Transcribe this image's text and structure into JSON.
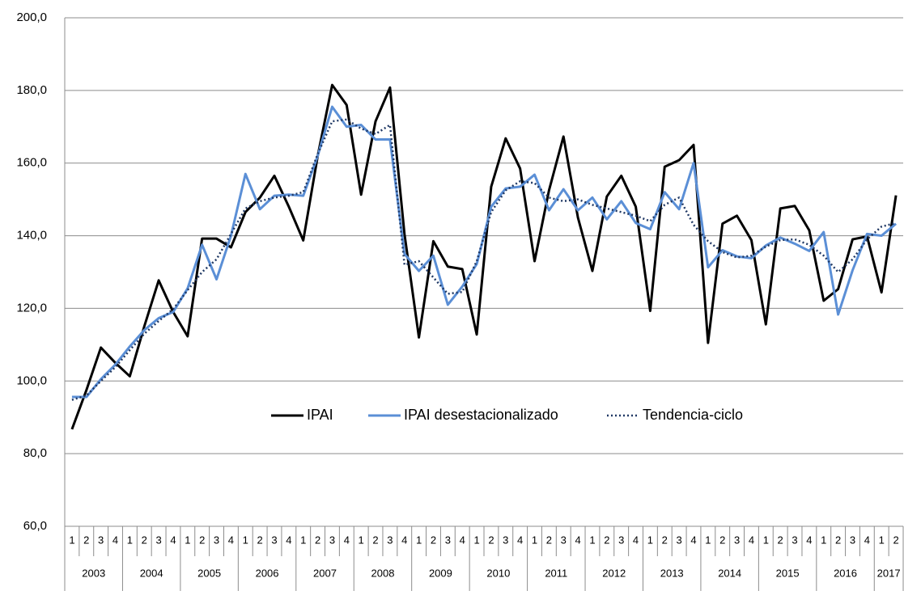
{
  "chart_data": {
    "type": "line",
    "categories": [
      "1",
      "2",
      "3",
      "4",
      "1",
      "2",
      "3",
      "4",
      "1",
      "2",
      "3",
      "4",
      "1",
      "2",
      "3",
      "4",
      "1",
      "2",
      "3",
      "4",
      "1",
      "2",
      "3",
      "4",
      "1",
      "2",
      "3",
      "4",
      "1",
      "2",
      "3",
      "4",
      "1",
      "2",
      "3",
      "4",
      "1",
      "2",
      "3",
      "4",
      "1",
      "2",
      "3",
      "4",
      "1",
      "2",
      "3",
      "4",
      "1",
      "2",
      "3",
      "4",
      "1",
      "2",
      "3",
      "4",
      "1",
      "2"
    ],
    "years": [
      "2003",
      "2004",
      "2005",
      "2006",
      "2007",
      "2008",
      "2009",
      "2010",
      "2011",
      "2012",
      "2013",
      "2014",
      "2015",
      "2016",
      "2017"
    ],
    "ylim": [
      60,
      200
    ],
    "yticks": [
      {
        "value": 60,
        "label": "60,0"
      },
      {
        "value": 80,
        "label": "80,0"
      },
      {
        "value": 100,
        "label": "100,0"
      },
      {
        "value": 120,
        "label": "120,0"
      },
      {
        "value": 140,
        "label": "140,0"
      },
      {
        "value": 160,
        "label": "160,0"
      },
      {
        "value": 180,
        "label": "180,0"
      },
      {
        "value": 200,
        "label": "200,0"
      }
    ],
    "grid": true,
    "series": [
      {
        "name": "IPAI",
        "color": "#000000",
        "dash": false,
        "values": [
          86.7,
          97.5,
          109.2,
          105,
          101.3,
          115,
          127.7,
          119,
          112.3,
          139.2,
          139.2,
          136.8,
          146.5,
          150.5,
          156.5,
          148,
          138.7,
          162,
          181.5,
          176,
          151.3,
          171.5,
          180.8,
          140.5,
          112,
          138.5,
          131.5,
          130.8,
          112.8,
          153.5,
          166.8,
          158.5,
          133,
          152.5,
          167.3,
          145,
          130.3,
          150.8,
          156.5,
          148,
          119.3,
          159,
          160.8,
          165,
          110.5,
          143.3,
          145.5,
          138.8,
          115.6,
          147.5,
          148.2,
          141.5,
          122.1,
          125.3,
          139,
          139.8,
          124.4,
          151.1
        ]
      },
      {
        "name": "IPAI desestacionalizado",
        "color": "#5b8fd6",
        "dash": false,
        "values": [
          95.6,
          95.6,
          100.5,
          104.5,
          109.5,
          114,
          117.3,
          119,
          125.5,
          137.5,
          128,
          140,
          157,
          147.3,
          151,
          151.3,
          151,
          162,
          175.5,
          170,
          170.5,
          166.5,
          166.5,
          135,
          130.3,
          134.5,
          121,
          126,
          132.2,
          148,
          153,
          153.5,
          156.8,
          147,
          152.8,
          147,
          150.5,
          144.5,
          149.5,
          143.5,
          141.8,
          152,
          147.3,
          160,
          131.3,
          136,
          134.3,
          133.8,
          137.3,
          139.5,
          137.8,
          135.8,
          141,
          118.3,
          130.5,
          140.5,
          140,
          143.3
        ]
      },
      {
        "name": "Tendencia-ciclo",
        "color": "#1f3864",
        "dash": true,
        "values": [
          94.8,
          96,
          100,
          103.8,
          108.5,
          113,
          116.5,
          119.8,
          125,
          130,
          133.5,
          140.5,
          147.5,
          149.5,
          150.5,
          151,
          152,
          162.5,
          171.5,
          172,
          169.5,
          168,
          170.5,
          132,
          133,
          128.5,
          124,
          124.5,
          133,
          146.5,
          152.5,
          155,
          154.5,
          150.5,
          149.5,
          150,
          148.5,
          147.5,
          146.5,
          145.5,
          144,
          148.5,
          150.5,
          143,
          138.5,
          135.5,
          134,
          134.5,
          137,
          138.8,
          139,
          137.5,
          134.5,
          130,
          133.5,
          139,
          142.5,
          143.5
        ]
      }
    ]
  }
}
